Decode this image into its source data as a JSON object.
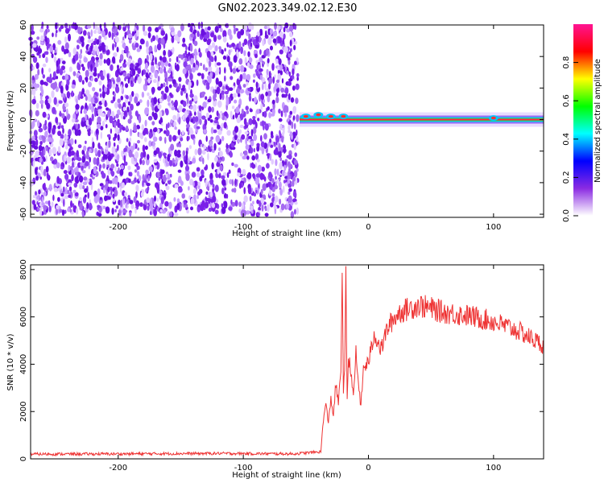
{
  "title": "GN02.2023.349.02.12.E30",
  "chart_data": [
    {
      "type": "heatmap",
      "panel": "spectrogram",
      "xlabel": "Height of straight line (km)",
      "ylabel": "Frequency (Hz)",
      "xlim": [
        -270,
        140
      ],
      "ylim": [
        -62,
        60
      ],
      "xticks": [
        "-200",
        "-100",
        "0",
        "100"
      ],
      "yticks": [
        "60",
        "40",
        "20",
        "0",
        "-20",
        "-40",
        "-60"
      ],
      "colorbar": {
        "label": "Normalized spectral amplitude",
        "range": [
          0,
          1
        ],
        "ticks": [
          "0.0",
          "0.2",
          "0.4",
          "0.6",
          "0.8"
        ],
        "colors": [
          "#ffffff",
          "#8a2be2",
          "#0000ff",
          "#00ffff",
          "#00ff00",
          "#ffff00",
          "#ff0000",
          "#ff1493"
        ]
      },
      "regions": [
        {
          "x_range": [
            -270,
            -55
          ],
          "freq_range": [
            -62,
            60
          ],
          "amplitude": "low broadband noise (~0.1)"
        },
        {
          "x_range": [
            -55,
            140
          ],
          "freq_range": [
            -4,
            4
          ],
          "amplitude": "high narrowband near 0 Hz (~0.9-1.0)"
        }
      ]
    },
    {
      "type": "line",
      "panel": "snr",
      "xlabel": "Height of straight line (km)",
      "ylabel": "SNR (10 * v/v)",
      "xlim": [
        -270,
        140
      ],
      "ylim": [
        0,
        8200
      ],
      "xticks": [
        "-200",
        "-100",
        "0",
        "100"
      ],
      "yticks": [
        "8000",
        "6000",
        "4000",
        "2000",
        "0"
      ],
      "series": [
        {
          "color": "#ee3333",
          "x": [
            -270,
            -200,
            -120,
            -60,
            -38,
            -36,
            -34,
            -32,
            -30,
            -28,
            -26,
            -24,
            -22,
            -21,
            -20,
            -19,
            -18,
            -17,
            -16,
            -14,
            -12,
            -10,
            -8,
            -6,
            -4,
            0,
            5,
            10,
            15,
            20,
            25,
            30,
            40,
            50,
            60,
            80,
            100,
            120,
            140
          ],
          "y": [
            200,
            210,
            230,
            210,
            300,
            1700,
            2300,
            1500,
            2600,
            1800,
            3200,
            2300,
            3800,
            8200,
            3000,
            3500,
            7600,
            2600,
            4200,
            3800,
            2500,
            4500,
            3200,
            2200,
            3800,
            4100,
            5300,
            4600,
            5500,
            5900,
            6200,
            6300,
            6500,
            6350,
            6200,
            6050,
            5800,
            5400,
            4800
          ]
        }
      ]
    }
  ]
}
